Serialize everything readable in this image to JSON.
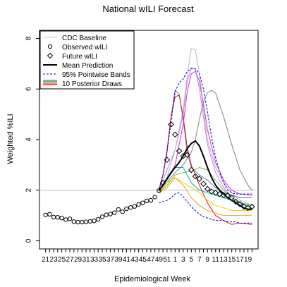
{
  "chart_data": {
    "type": "line",
    "title": "National wILI Forecast",
    "xlabel": "Epidemiological Week",
    "ylabel": "Weighted %ILI",
    "xlim": [
      0,
      51
    ],
    "ylim": [
      0,
      8
    ],
    "x_ticks": [
      {
        "pos": 0,
        "label": "21"
      },
      {
        "pos": 2,
        "label": "23"
      },
      {
        "pos": 4,
        "label": "25"
      },
      {
        "pos": 6,
        "label": "27"
      },
      {
        "pos": 8,
        "label": "29"
      },
      {
        "pos": 10,
        "label": "31"
      },
      {
        "pos": 12,
        "label": "33"
      },
      {
        "pos": 14,
        "label": "35"
      },
      {
        "pos": 16,
        "label": "37"
      },
      {
        "pos": 18,
        "label": "39"
      },
      {
        "pos": 20,
        "label": "41"
      },
      {
        "pos": 22,
        "label": "43"
      },
      {
        "pos": 24,
        "label": "45"
      },
      {
        "pos": 26,
        "label": "47"
      },
      {
        "pos": 28,
        "label": "49"
      },
      {
        "pos": 30,
        "label": "51"
      },
      {
        "pos": 32,
        "label": "1"
      },
      {
        "pos": 34,
        "label": "3"
      },
      {
        "pos": 36,
        "label": "5"
      },
      {
        "pos": 38,
        "label": "7"
      },
      {
        "pos": 40,
        "label": "9"
      },
      {
        "pos": 42,
        "label": "11"
      },
      {
        "pos": 44,
        "label": "13"
      },
      {
        "pos": 46,
        "label": "15"
      },
      {
        "pos": 48,
        "label": "17"
      },
      {
        "pos": 50,
        "label": "19"
      }
    ],
    "y_ticks": [
      0,
      2,
      4,
      6,
      8
    ],
    "baseline": {
      "name": "CDC Baseline",
      "value": 2.0,
      "color": "#cccccc"
    },
    "observed": {
      "name": "Observed wILI",
      "x": [
        0,
        1,
        2,
        3,
        4,
        5,
        6,
        7,
        8,
        9,
        10,
        11,
        12,
        13,
        14,
        15,
        16,
        17,
        18,
        19,
        20,
        21,
        22,
        23,
        24,
        25,
        26,
        27,
        28
      ],
      "values": [
        1.02,
        1.05,
        0.94,
        0.93,
        0.9,
        0.84,
        0.87,
        0.76,
        0.74,
        0.74,
        0.75,
        0.77,
        0.79,
        0.85,
        0.95,
        1.03,
        1.06,
        1.11,
        1.24,
        1.15,
        1.27,
        1.32,
        1.36,
        1.44,
        1.5,
        1.58,
        1.6,
        1.73,
        1.98
      ]
    },
    "future": {
      "name": "Future wILI",
      "x": [
        29,
        30,
        31,
        32,
        33,
        34,
        35,
        36,
        37,
        38,
        39,
        40,
        41,
        42,
        43,
        44,
        45,
        46,
        47,
        48,
        49,
        50,
        51
      ],
      "values": [
        2.3,
        3.2,
        4.6,
        4.2,
        3.55,
        3.35,
        3.4,
        2.8,
        2.55,
        2.45,
        2.25,
        2.05,
        1.95,
        1.9,
        1.85,
        1.8,
        1.8,
        1.7,
        1.55,
        1.45,
        1.35,
        1.3,
        1.35
      ]
    },
    "mean_prediction": {
      "name": "Mean Prediction",
      "x": [
        28,
        29,
        30,
        31,
        32,
        33,
        34,
        35,
        36,
        37,
        38,
        39,
        40,
        41,
        42,
        43,
        44,
        45,
        46,
        47,
        48,
        49,
        50,
        51
      ],
      "values": [
        1.98,
        2.2,
        2.45,
        2.7,
        2.9,
        3.1,
        3.35,
        3.65,
        3.85,
        3.95,
        3.75,
        3.35,
        2.9,
        2.5,
        2.2,
        2.0,
        1.85,
        1.7,
        1.6,
        1.5,
        1.4,
        1.3,
        1.25,
        1.25
      ]
    },
    "bands": {
      "name": "95% Pointwise Bands",
      "x": [
        28,
        29,
        30,
        31,
        32,
        33,
        34,
        35,
        36,
        37,
        38,
        39,
        40,
        41,
        42,
        43,
        44,
        45,
        46,
        47,
        48,
        49,
        50,
        51
      ],
      "upper": [
        2.05,
        2.6,
        3.5,
        4.7,
        5.9,
        6.25,
        6.4,
        6.7,
        6.8,
        6.8,
        6.6,
        6.0,
        5.1,
        4.1,
        3.3,
        2.7,
        2.3,
        2.0,
        1.9,
        1.85,
        1.85,
        1.85,
        1.85,
        1.85
      ],
      "lower": [
        1.5,
        1.55,
        1.6,
        1.7,
        1.85,
        1.9,
        1.75,
        1.55,
        1.35,
        1.2,
        1.05,
        0.95,
        0.9,
        0.85,
        0.8,
        0.8,
        0.8,
        0.75,
        0.75,
        0.75,
        0.7,
        0.7,
        0.7,
        0.7
      ]
    },
    "draws_legend_label": "10 Posterior Draws",
    "draws": [
      {
        "color": "#c77cff",
        "x": [
          28,
          30,
          32,
          34,
          35,
          36,
          37,
          38,
          39,
          40,
          42,
          44,
          46,
          48,
          51
        ],
        "values": [
          2.0,
          2.8,
          3.6,
          5.0,
          6.3,
          6.85,
          6.8,
          6.0,
          4.9,
          3.8,
          2.7,
          2.1,
          1.7,
          1.5,
          1.4
        ]
      },
      {
        "color": "#b8b8b8",
        "x": [
          28,
          30,
          32,
          34,
          35,
          36,
          37,
          38,
          39,
          40,
          42,
          44,
          46,
          48,
          51
        ],
        "values": [
          2.0,
          2.5,
          3.6,
          5.2,
          6.5,
          7.6,
          7.55,
          6.6,
          5.2,
          4.0,
          2.9,
          2.3,
          1.9,
          1.6,
          1.4
        ]
      },
      {
        "color": "#808080",
        "x": [
          28,
          30,
          32,
          34,
          36,
          37,
          38,
          39,
          40,
          41,
          42,
          44,
          46,
          48,
          50,
          51
        ],
        "values": [
          2.0,
          2.3,
          2.7,
          3.0,
          3.5,
          4.0,
          4.8,
          5.5,
          5.85,
          5.95,
          5.85,
          4.9,
          3.8,
          2.8,
          2.2,
          2.0
        ]
      },
      {
        "color": "#4f81bd",
        "x": [
          28,
          29,
          30,
          31,
          32,
          33,
          34,
          35,
          36,
          38,
          40,
          42,
          44,
          46,
          48,
          51
        ],
        "values": [
          2.0,
          2.6,
          3.6,
          4.9,
          5.95,
          5.8,
          4.8,
          3.5,
          2.9,
          2.6,
          2.4,
          2.1,
          1.9,
          1.8,
          1.7,
          1.7
        ]
      },
      {
        "color": "#e01010",
        "x": [
          28,
          29,
          30,
          31,
          32,
          33,
          34,
          35,
          36,
          38,
          40,
          42,
          44,
          46,
          48,
          51
        ],
        "values": [
          2.0,
          2.6,
          3.5,
          4.9,
          5.7,
          5.75,
          4.9,
          3.7,
          3.0,
          2.2,
          1.5,
          1.0,
          0.8,
          0.65,
          0.7,
          0.65
        ]
      },
      {
        "color": "#cc33cc",
        "x": [
          28,
          30,
          32,
          34,
          35,
          36,
          37,
          38,
          39,
          40,
          42,
          44,
          46,
          48,
          51
        ],
        "values": [
          2.0,
          2.4,
          3.0,
          4.6,
          5.9,
          6.6,
          6.7,
          6.3,
          5.4,
          4.4,
          3.1,
          2.4,
          2.0,
          1.85,
          1.8
        ]
      },
      {
        "color": "#6fbf40",
        "x": [
          28,
          30,
          32,
          34,
          36,
          38,
          40,
          42,
          44,
          46,
          48,
          51
        ],
        "values": [
          1.9,
          2.2,
          2.6,
          2.7,
          2.75,
          2.9,
          2.8,
          2.4,
          2.0,
          1.7,
          1.5,
          1.3
        ]
      },
      {
        "color": "#00b3b3",
        "x": [
          28,
          30,
          32,
          34,
          36,
          38,
          40,
          42,
          44,
          46,
          48,
          51
        ],
        "values": [
          1.95,
          2.4,
          2.9,
          2.9,
          2.3,
          2.0,
          1.9,
          1.8,
          1.7,
          1.6,
          1.5,
          1.4
        ]
      },
      {
        "color": "#ffcc00",
        "x": [
          28,
          30,
          32,
          34,
          36,
          38,
          40,
          42,
          44,
          46,
          48,
          51
        ],
        "values": [
          1.9,
          2.3,
          2.5,
          2.3,
          2.1,
          1.9,
          1.6,
          1.4,
          1.3,
          1.2,
          1.2,
          1.2
        ]
      },
      {
        "color": "#f0a030",
        "x": [
          28,
          30,
          32,
          34,
          36,
          38,
          40,
          42,
          44,
          46,
          48,
          51
        ],
        "values": [
          1.9,
          2.1,
          2.5,
          2.2,
          1.7,
          1.4,
          1.2,
          1.1,
          1.0,
          1.0,
          1.0,
          1.0
        ]
      }
    ],
    "legend_position": "top-left",
    "grid": false
  }
}
